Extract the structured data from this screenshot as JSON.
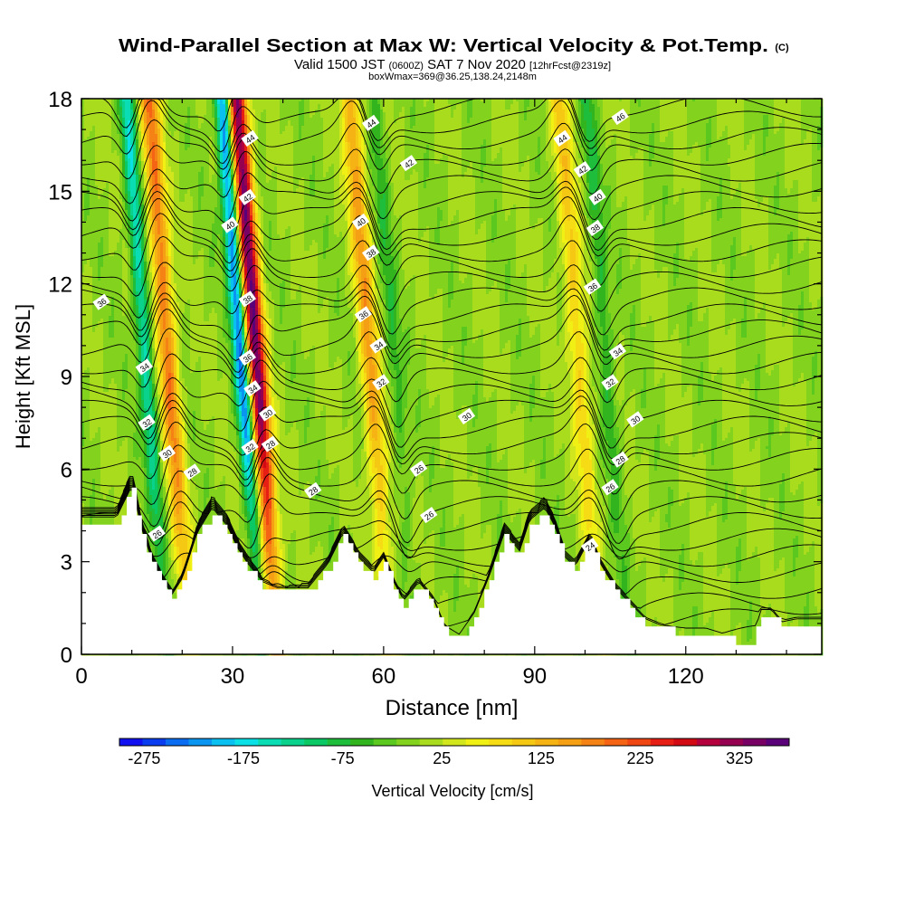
{
  "chart_data": {
    "type": "heatmap",
    "title": "Wind-Parallel Section at Max W: Vertical Velocity & Pot.Temp.",
    "title_mark": "(C)",
    "subtitle": {
      "part1": "Valid 1500 JST",
      "part2": "(0600Z)",
      "part3": "SAT 7 Nov 2020",
      "part4": "[12hrFcst@2319z]"
    },
    "subtitle2": "boxWmax=369@36.25,138.24,2148m",
    "xlabel": "Distance [nm]",
    "ylabel": "Height [Kft MSL]",
    "xlim": [
      0,
      147
    ],
    "ylim": [
      0,
      18
    ],
    "x_ticks": [
      0,
      30,
      60,
      90,
      120
    ],
    "y_ticks": [
      0,
      3,
      6,
      9,
      12,
      15,
      18
    ],
    "colorbar": {
      "label": "Vertical Velocity [cm/s]",
      "tick_labels": [
        "-275",
        "-175",
        "-75",
        "25",
        "125",
        "225",
        "325"
      ],
      "range": [
        -300,
        375
      ],
      "step": 25,
      "colors": [
        "#1010f0",
        "#0a3cf0",
        "#0a6cf0",
        "#0a96f0",
        "#0ac0f0",
        "#0ae0e6",
        "#0adcb4",
        "#0ad28c",
        "#0ac864",
        "#1ebe3c",
        "#32b41e",
        "#5ac81e",
        "#82d21e",
        "#aadc1e",
        "#d2e61e",
        "#f0f014",
        "#f5dc14",
        "#f5c814",
        "#f5b414",
        "#f5a014",
        "#f58214",
        "#f56414",
        "#f04614",
        "#e61e14",
        "#d20a14",
        "#b4003c",
        "#960050",
        "#780064",
        "#5a0078"
      ]
    },
    "updraft_bands": [
      {
        "x": 17,
        "peak": 200
      },
      {
        "x": 34.5,
        "peak": 369
      },
      {
        "x": 57,
        "peak": 160
      },
      {
        "x": 98.5,
        "peak": 110
      }
    ],
    "downdraft_bands": [
      {
        "x": 12.5,
        "peak": -160
      },
      {
        "x": 31.5,
        "peak": -260
      },
      {
        "x": 62,
        "peak": -60
      },
      {
        "x": 104,
        "peak": -75
      }
    ],
    "terrain_top_kft": [
      [
        0,
        4.3
      ],
      [
        7,
        4.3
      ],
      [
        10,
        5.3
      ],
      [
        12,
        3.9
      ],
      [
        14,
        2.9
      ],
      [
        16,
        2.3
      ],
      [
        18,
        1.8
      ],
      [
        20,
        2.3
      ],
      [
        23,
        3.8
      ],
      [
        26,
        4.6
      ],
      [
        29,
        4.0
      ],
      [
        31,
        3.3
      ],
      [
        33,
        2.8
      ],
      [
        36,
        2.2
      ],
      [
        39,
        2.0
      ],
      [
        45,
        2.0
      ],
      [
        49,
        2.8
      ],
      [
        52,
        3.8
      ],
      [
        55,
        3.0
      ],
      [
        58,
        2.5
      ],
      [
        60,
        3.0
      ],
      [
        62,
        2.2
      ],
      [
        64,
        1.6
      ],
      [
        67,
        2.2
      ],
      [
        70,
        1.6
      ],
      [
        72,
        0.8
      ],
      [
        75,
        0.5
      ],
      [
        78,
        1.2
      ],
      [
        81,
        2.4
      ],
      [
        84,
        3.8
      ],
      [
        87,
        3.2
      ],
      [
        89,
        4.2
      ],
      [
        92,
        4.6
      ],
      [
        94,
        4.0
      ],
      [
        96,
        3.0
      ],
      [
        98,
        2.7
      ],
      [
        101,
        3.6
      ],
      [
        103,
        2.8
      ],
      [
        106,
        2.0
      ],
      [
        109,
        1.5
      ],
      [
        112,
        1.0
      ],
      [
        115,
        0.8
      ],
      [
        120,
        0.7
      ],
      [
        124,
        0.7
      ],
      [
        130,
        0.4
      ],
      [
        133,
        0.3
      ],
      [
        135,
        1.3
      ],
      [
        137,
        1.3
      ],
      [
        139,
        0.9
      ],
      [
        142,
        1.0
      ],
      [
        147,
        1.0
      ]
    ],
    "theta_contour_labels": [
      {
        "text": "46",
        "x": 107,
        "y": 17.4
      },
      {
        "text": "44",
        "x": 33.5,
        "y": 16.7
      },
      {
        "text": "44",
        "x": 57.5,
        "y": 17.2
      },
      {
        "text": "44",
        "x": 95.5,
        "y": 16.7
      },
      {
        "text": "42",
        "x": 65,
        "y": 15.9
      },
      {
        "text": "42",
        "x": 99.5,
        "y": 15.7
      },
      {
        "text": "42",
        "x": 33,
        "y": 14.8
      },
      {
        "text": "40",
        "x": 102.5,
        "y": 14.8
      },
      {
        "text": "40",
        "x": 29.5,
        "y": 13.9
      },
      {
        "text": "40",
        "x": 55.5,
        "y": 14.0
      },
      {
        "text": "38",
        "x": 102,
        "y": 13.8
      },
      {
        "text": "38",
        "x": 57.5,
        "y": 13.0
      },
      {
        "text": "36",
        "x": 101.5,
        "y": 11.9
      },
      {
        "text": "36",
        "x": 4,
        "y": 11.4
      },
      {
        "text": "38",
        "x": 33,
        "y": 11.5
      },
      {
        "text": "36",
        "x": 56,
        "y": 11.0
      },
      {
        "text": "34",
        "x": 59,
        "y": 10.0
      },
      {
        "text": "34",
        "x": 106.5,
        "y": 9.8
      },
      {
        "text": "36",
        "x": 33,
        "y": 9.6
      },
      {
        "text": "34",
        "x": 12.5,
        "y": 9.3
      },
      {
        "text": "32",
        "x": 59.5,
        "y": 8.8
      },
      {
        "text": "32",
        "x": 105,
        "y": 8.8
      },
      {
        "text": "34",
        "x": 34,
        "y": 8.6
      },
      {
        "text": "30",
        "x": 37,
        "y": 7.8
      },
      {
        "text": "30",
        "x": 76.5,
        "y": 7.7
      },
      {
        "text": "30",
        "x": 110,
        "y": 7.6
      },
      {
        "text": "32",
        "x": 13,
        "y": 7.5
      },
      {
        "text": "32",
        "x": 33.5,
        "y": 6.7
      },
      {
        "text": "28",
        "x": 37.5,
        "y": 6.8
      },
      {
        "text": "30",
        "x": 17,
        "y": 6.5
      },
      {
        "text": "28",
        "x": 107,
        "y": 6.3
      },
      {
        "text": "28",
        "x": 22,
        "y": 5.9
      },
      {
        "text": "26",
        "x": 67,
        "y": 6.0
      },
      {
        "text": "26",
        "x": 105,
        "y": 5.4
      },
      {
        "text": "28",
        "x": 46,
        "y": 5.3
      },
      {
        "text": "26",
        "x": 69,
        "y": 4.5
      },
      {
        "text": "26",
        "x": 15,
        "y": 3.9
      },
      {
        "text": "24",
        "x": 101,
        "y": 3.5
      }
    ]
  }
}
